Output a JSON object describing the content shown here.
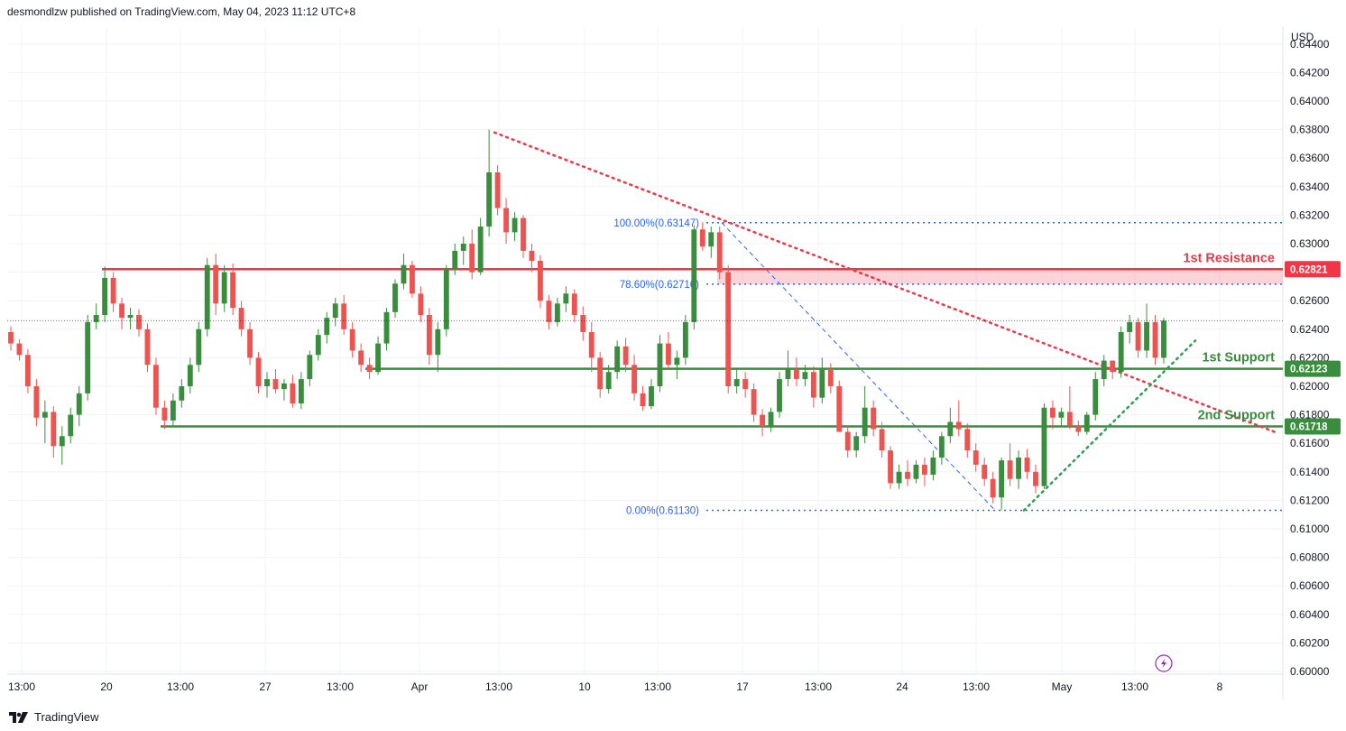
{
  "header": {
    "publish_line": "desmondlzw published on TradingView.com, May 04, 2023 11:12 UTC+8"
  },
  "footer": {
    "brand": "TradingView"
  },
  "colors": {
    "up": "#26a69a",
    "up_body": "#388e3c",
    "down": "#ef5350",
    "resistance": "#f23645",
    "support": "#388e3c",
    "fib": "#2962ff"
  },
  "chart_data": {
    "type": "candlestick",
    "currency_label": "USD",
    "ylim": [
      0.6,
      0.6446
    ],
    "y_ticks": [
      "0.64400",
      "0.64200",
      "0.64000",
      "0.63800",
      "0.63600",
      "0.63400",
      "0.63200",
      "0.63000",
      "0.62800",
      "0.62600",
      "0.62400",
      "0.62200",
      "0.62000",
      "0.61800",
      "0.61600",
      "0.61400",
      "0.61200",
      "0.61000",
      "0.60800",
      "0.60600",
      "0.60400",
      "0.60200",
      "0.60000"
    ],
    "x_ticks": [
      "13:00",
      "20",
      "13:00",
      "27",
      "13:00",
      "Apr",
      "13:00",
      "10",
      "13:00",
      "17",
      "13:00",
      "24",
      "13:00",
      "May",
      "13:00",
      "8"
    ],
    "levels": [
      {
        "name": "1st Resistance",
        "value": 0.62821,
        "tag": "0.62821",
        "kind": "resistance"
      },
      {
        "name": "1st Support",
        "value": 0.62123,
        "tag": "0.62123",
        "kind": "support"
      },
      {
        "name": "2nd Support",
        "value": 0.61718,
        "tag": "0.61718",
        "kind": "support"
      }
    ],
    "fibonacci": [
      {
        "label": "100.00%(0.63147)",
        "value": 0.63147
      },
      {
        "label": "78.60%(0.62716)",
        "value": 0.62716
      },
      {
        "label": "0.00%(0.61130)",
        "value": 0.6113
      }
    ],
    "resistance_zone": [
      0.62716,
      0.62821
    ],
    "last_close": 0.6246,
    "candles_hourly_closes_summary": "approx. OHLC read from chart",
    "candles": [
      [
        0.6238,
        0.6242,
        0.6225,
        0.623
      ],
      [
        0.623,
        0.6233,
        0.6218,
        0.6222
      ],
      [
        0.6222,
        0.6226,
        0.6195,
        0.62
      ],
      [
        0.62,
        0.6205,
        0.6172,
        0.6178
      ],
      [
        0.6178,
        0.619,
        0.616,
        0.6182
      ],
      [
        0.6182,
        0.6186,
        0.615,
        0.6158
      ],
      [
        0.6158,
        0.6172,
        0.6145,
        0.6165
      ],
      [
        0.6165,
        0.6185,
        0.616,
        0.618
      ],
      [
        0.618,
        0.62,
        0.6172,
        0.6195
      ],
      [
        0.6195,
        0.625,
        0.619,
        0.6245
      ],
      [
        0.6245,
        0.6258,
        0.624,
        0.625
      ],
      [
        0.625,
        0.6284,
        0.6245,
        0.6276
      ],
      [
        0.6276,
        0.628,
        0.6252,
        0.6258
      ],
      [
        0.6258,
        0.6262,
        0.624,
        0.6248
      ],
      [
        0.6248,
        0.6255,
        0.624,
        0.625
      ],
      [
        0.625,
        0.6254,
        0.6235,
        0.624
      ],
      [
        0.624,
        0.6244,
        0.621,
        0.6215
      ],
      [
        0.6215,
        0.622,
        0.618,
        0.6185
      ],
      [
        0.6185,
        0.619,
        0.617,
        0.6176
      ],
      [
        0.6176,
        0.6195,
        0.6172,
        0.619
      ],
      [
        0.619,
        0.6205,
        0.6185,
        0.62
      ],
      [
        0.62,
        0.622,
        0.6195,
        0.6215
      ],
      [
        0.6215,
        0.6245,
        0.621,
        0.624
      ],
      [
        0.624,
        0.629,
        0.6235,
        0.6285
      ],
      [
        0.6285,
        0.6293,
        0.625,
        0.6258
      ],
      [
        0.6258,
        0.6285,
        0.6252,
        0.628
      ],
      [
        0.628,
        0.6286,
        0.625,
        0.6255
      ],
      [
        0.6255,
        0.626,
        0.6235,
        0.624
      ],
      [
        0.624,
        0.6245,
        0.6215,
        0.622
      ],
      [
        0.622,
        0.6224,
        0.6195,
        0.62
      ],
      [
        0.62,
        0.621,
        0.6192,
        0.6205
      ],
      [
        0.6205,
        0.6212,
        0.6195,
        0.6198
      ],
      [
        0.6198,
        0.6205,
        0.619,
        0.6202
      ],
      [
        0.6202,
        0.6208,
        0.6185,
        0.6188
      ],
      [
        0.6188,
        0.621,
        0.6184,
        0.6205
      ],
      [
        0.6205,
        0.6225,
        0.62,
        0.6222
      ],
      [
        0.6222,
        0.624,
        0.6218,
        0.6236
      ],
      [
        0.6236,
        0.6252,
        0.623,
        0.6248
      ],
      [
        0.6248,
        0.6262,
        0.6242,
        0.6258
      ],
      [
        0.6258,
        0.6264,
        0.6236,
        0.624
      ],
      [
        0.624,
        0.6245,
        0.622,
        0.6225
      ],
      [
        0.6225,
        0.623,
        0.621,
        0.6215
      ],
      [
        0.6215,
        0.622,
        0.6205,
        0.621
      ],
      [
        0.621,
        0.6235,
        0.6208,
        0.623
      ],
      [
        0.623,
        0.6255,
        0.6225,
        0.6252
      ],
      [
        0.6252,
        0.6275,
        0.6248,
        0.6272
      ],
      [
        0.6272,
        0.6293,
        0.6268,
        0.6285
      ],
      [
        0.6285,
        0.6288,
        0.6262,
        0.6265
      ],
      [
        0.6265,
        0.627,
        0.6245,
        0.625
      ],
      [
        0.625,
        0.6255,
        0.6215,
        0.6222
      ],
      [
        0.6222,
        0.6245,
        0.621,
        0.624
      ],
      [
        0.624,
        0.6285,
        0.6235,
        0.6282
      ],
      [
        0.6282,
        0.63,
        0.6278,
        0.6295
      ],
      [
        0.6295,
        0.6305,
        0.6285,
        0.63
      ],
      [
        0.63,
        0.631,
        0.6275,
        0.628
      ],
      [
        0.628,
        0.6318,
        0.6278,
        0.6312
      ],
      [
        0.6312,
        0.638,
        0.6305,
        0.635
      ],
      [
        0.635,
        0.6355,
        0.632,
        0.6325
      ],
      [
        0.6325,
        0.6332,
        0.63,
        0.6308
      ],
      [
        0.6308,
        0.6322,
        0.6302,
        0.6318
      ],
      [
        0.6318,
        0.632,
        0.629,
        0.6295
      ],
      [
        0.6295,
        0.63,
        0.628,
        0.6288
      ],
      [
        0.6288,
        0.6292,
        0.6255,
        0.626
      ],
      [
        0.626,
        0.6264,
        0.624,
        0.6245
      ],
      [
        0.6245,
        0.6262,
        0.6242,
        0.6258
      ],
      [
        0.6258,
        0.627,
        0.6252,
        0.6265
      ],
      [
        0.6265,
        0.6268,
        0.6245,
        0.625
      ],
      [
        0.625,
        0.6256,
        0.6232,
        0.6238
      ],
      [
        0.6238,
        0.6245,
        0.621,
        0.622
      ],
      [
        0.622,
        0.6224,
        0.6192,
        0.6198
      ],
      [
        0.6198,
        0.6215,
        0.6195,
        0.621
      ],
      [
        0.621,
        0.6232,
        0.6205,
        0.6228
      ],
      [
        0.6228,
        0.6234,
        0.621,
        0.6215
      ],
      [
        0.6215,
        0.6222,
        0.619,
        0.6195
      ],
      [
        0.6195,
        0.62,
        0.6183,
        0.6186
      ],
      [
        0.6186,
        0.6205,
        0.6184,
        0.62
      ],
      [
        0.62,
        0.6236,
        0.6196,
        0.623
      ],
      [
        0.623,
        0.6238,
        0.6212,
        0.6215
      ],
      [
        0.6215,
        0.6225,
        0.6205,
        0.622
      ],
      [
        0.622,
        0.625,
        0.6215,
        0.6245
      ],
      [
        0.6245,
        0.6313,
        0.624,
        0.631
      ],
      [
        0.631,
        0.6315,
        0.6295,
        0.6298
      ],
      [
        0.6298,
        0.6312,
        0.629,
        0.6308
      ],
      [
        0.6308,
        0.6312,
        0.6275,
        0.628
      ],
      [
        0.628,
        0.6285,
        0.6195,
        0.62
      ],
      [
        0.62,
        0.6212,
        0.6195,
        0.6205
      ],
      [
        0.6205,
        0.621,
        0.6192,
        0.6198
      ],
      [
        0.6198,
        0.6202,
        0.6175,
        0.618
      ],
      [
        0.618,
        0.6184,
        0.6165,
        0.6172
      ],
      [
        0.6172,
        0.6185,
        0.6168,
        0.6182
      ],
      [
        0.6182,
        0.621,
        0.6178,
        0.6205
      ],
      [
        0.6205,
        0.6225,
        0.62,
        0.6212
      ],
      [
        0.6212,
        0.622,
        0.62,
        0.6205
      ],
      [
        0.6205,
        0.6215,
        0.62,
        0.621
      ],
      [
        0.621,
        0.6214,
        0.6185,
        0.6192
      ],
      [
        0.6192,
        0.622,
        0.6188,
        0.6212
      ],
      [
        0.6212,
        0.6216,
        0.6195,
        0.62
      ],
      [
        0.62,
        0.6204,
        0.617,
        0.6168
      ],
      [
        0.6168,
        0.6172,
        0.615,
        0.6155
      ],
      [
        0.6155,
        0.6168,
        0.615,
        0.6165
      ],
      [
        0.6165,
        0.62,
        0.616,
        0.6185
      ],
      [
        0.6185,
        0.619,
        0.6165,
        0.617
      ],
      [
        0.617,
        0.6175,
        0.615,
        0.6155
      ],
      [
        0.6155,
        0.6158,
        0.6128,
        0.6132
      ],
      [
        0.6132,
        0.6145,
        0.6128,
        0.614
      ],
      [
        0.614,
        0.6148,
        0.613,
        0.6135
      ],
      [
        0.6135,
        0.6148,
        0.6132,
        0.6145
      ],
      [
        0.6145,
        0.615,
        0.613,
        0.6138
      ],
      [
        0.6138,
        0.6155,
        0.6134,
        0.615
      ],
      [
        0.615,
        0.6168,
        0.6145,
        0.6165
      ],
      [
        0.6165,
        0.6185,
        0.616,
        0.6175
      ],
      [
        0.6175,
        0.619,
        0.6165,
        0.617
      ],
      [
        0.617,
        0.6174,
        0.615,
        0.6155
      ],
      [
        0.6155,
        0.616,
        0.614,
        0.6145
      ],
      [
        0.6145,
        0.615,
        0.613,
        0.6135
      ],
      [
        0.6135,
        0.614,
        0.6118,
        0.6122
      ],
      [
        0.6122,
        0.615,
        0.6113,
        0.6148
      ],
      [
        0.6148,
        0.616,
        0.613,
        0.6135
      ],
      [
        0.6135,
        0.6155,
        0.6128,
        0.615
      ],
      [
        0.615,
        0.6156,
        0.6135,
        0.614
      ],
      [
        0.614,
        0.6145,
        0.6125,
        0.613
      ],
      [
        0.613,
        0.6188,
        0.6128,
        0.6185
      ],
      [
        0.6185,
        0.619,
        0.617,
        0.6178
      ],
      [
        0.6178,
        0.6185,
        0.6172,
        0.6182
      ],
      [
        0.6182,
        0.62,
        0.617,
        0.6172
      ],
      [
        0.6172,
        0.6176,
        0.6165,
        0.6168
      ],
      [
        0.6168,
        0.6182,
        0.6166,
        0.618
      ],
      [
        0.618,
        0.621,
        0.6176,
        0.6205
      ],
      [
        0.6205,
        0.6222,
        0.62,
        0.6218
      ],
      [
        0.6218,
        0.6215,
        0.6205,
        0.621
      ],
      [
        0.621,
        0.6242,
        0.6206,
        0.6238
      ],
      [
        0.6238,
        0.625,
        0.623,
        0.6245
      ],
      [
        0.6245,
        0.6248,
        0.622,
        0.6225
      ],
      [
        0.6225,
        0.6258,
        0.622,
        0.6245
      ],
      [
        0.6245,
        0.625,
        0.6215,
        0.622
      ],
      [
        0.622,
        0.6248,
        0.6216,
        0.6246
      ]
    ]
  }
}
